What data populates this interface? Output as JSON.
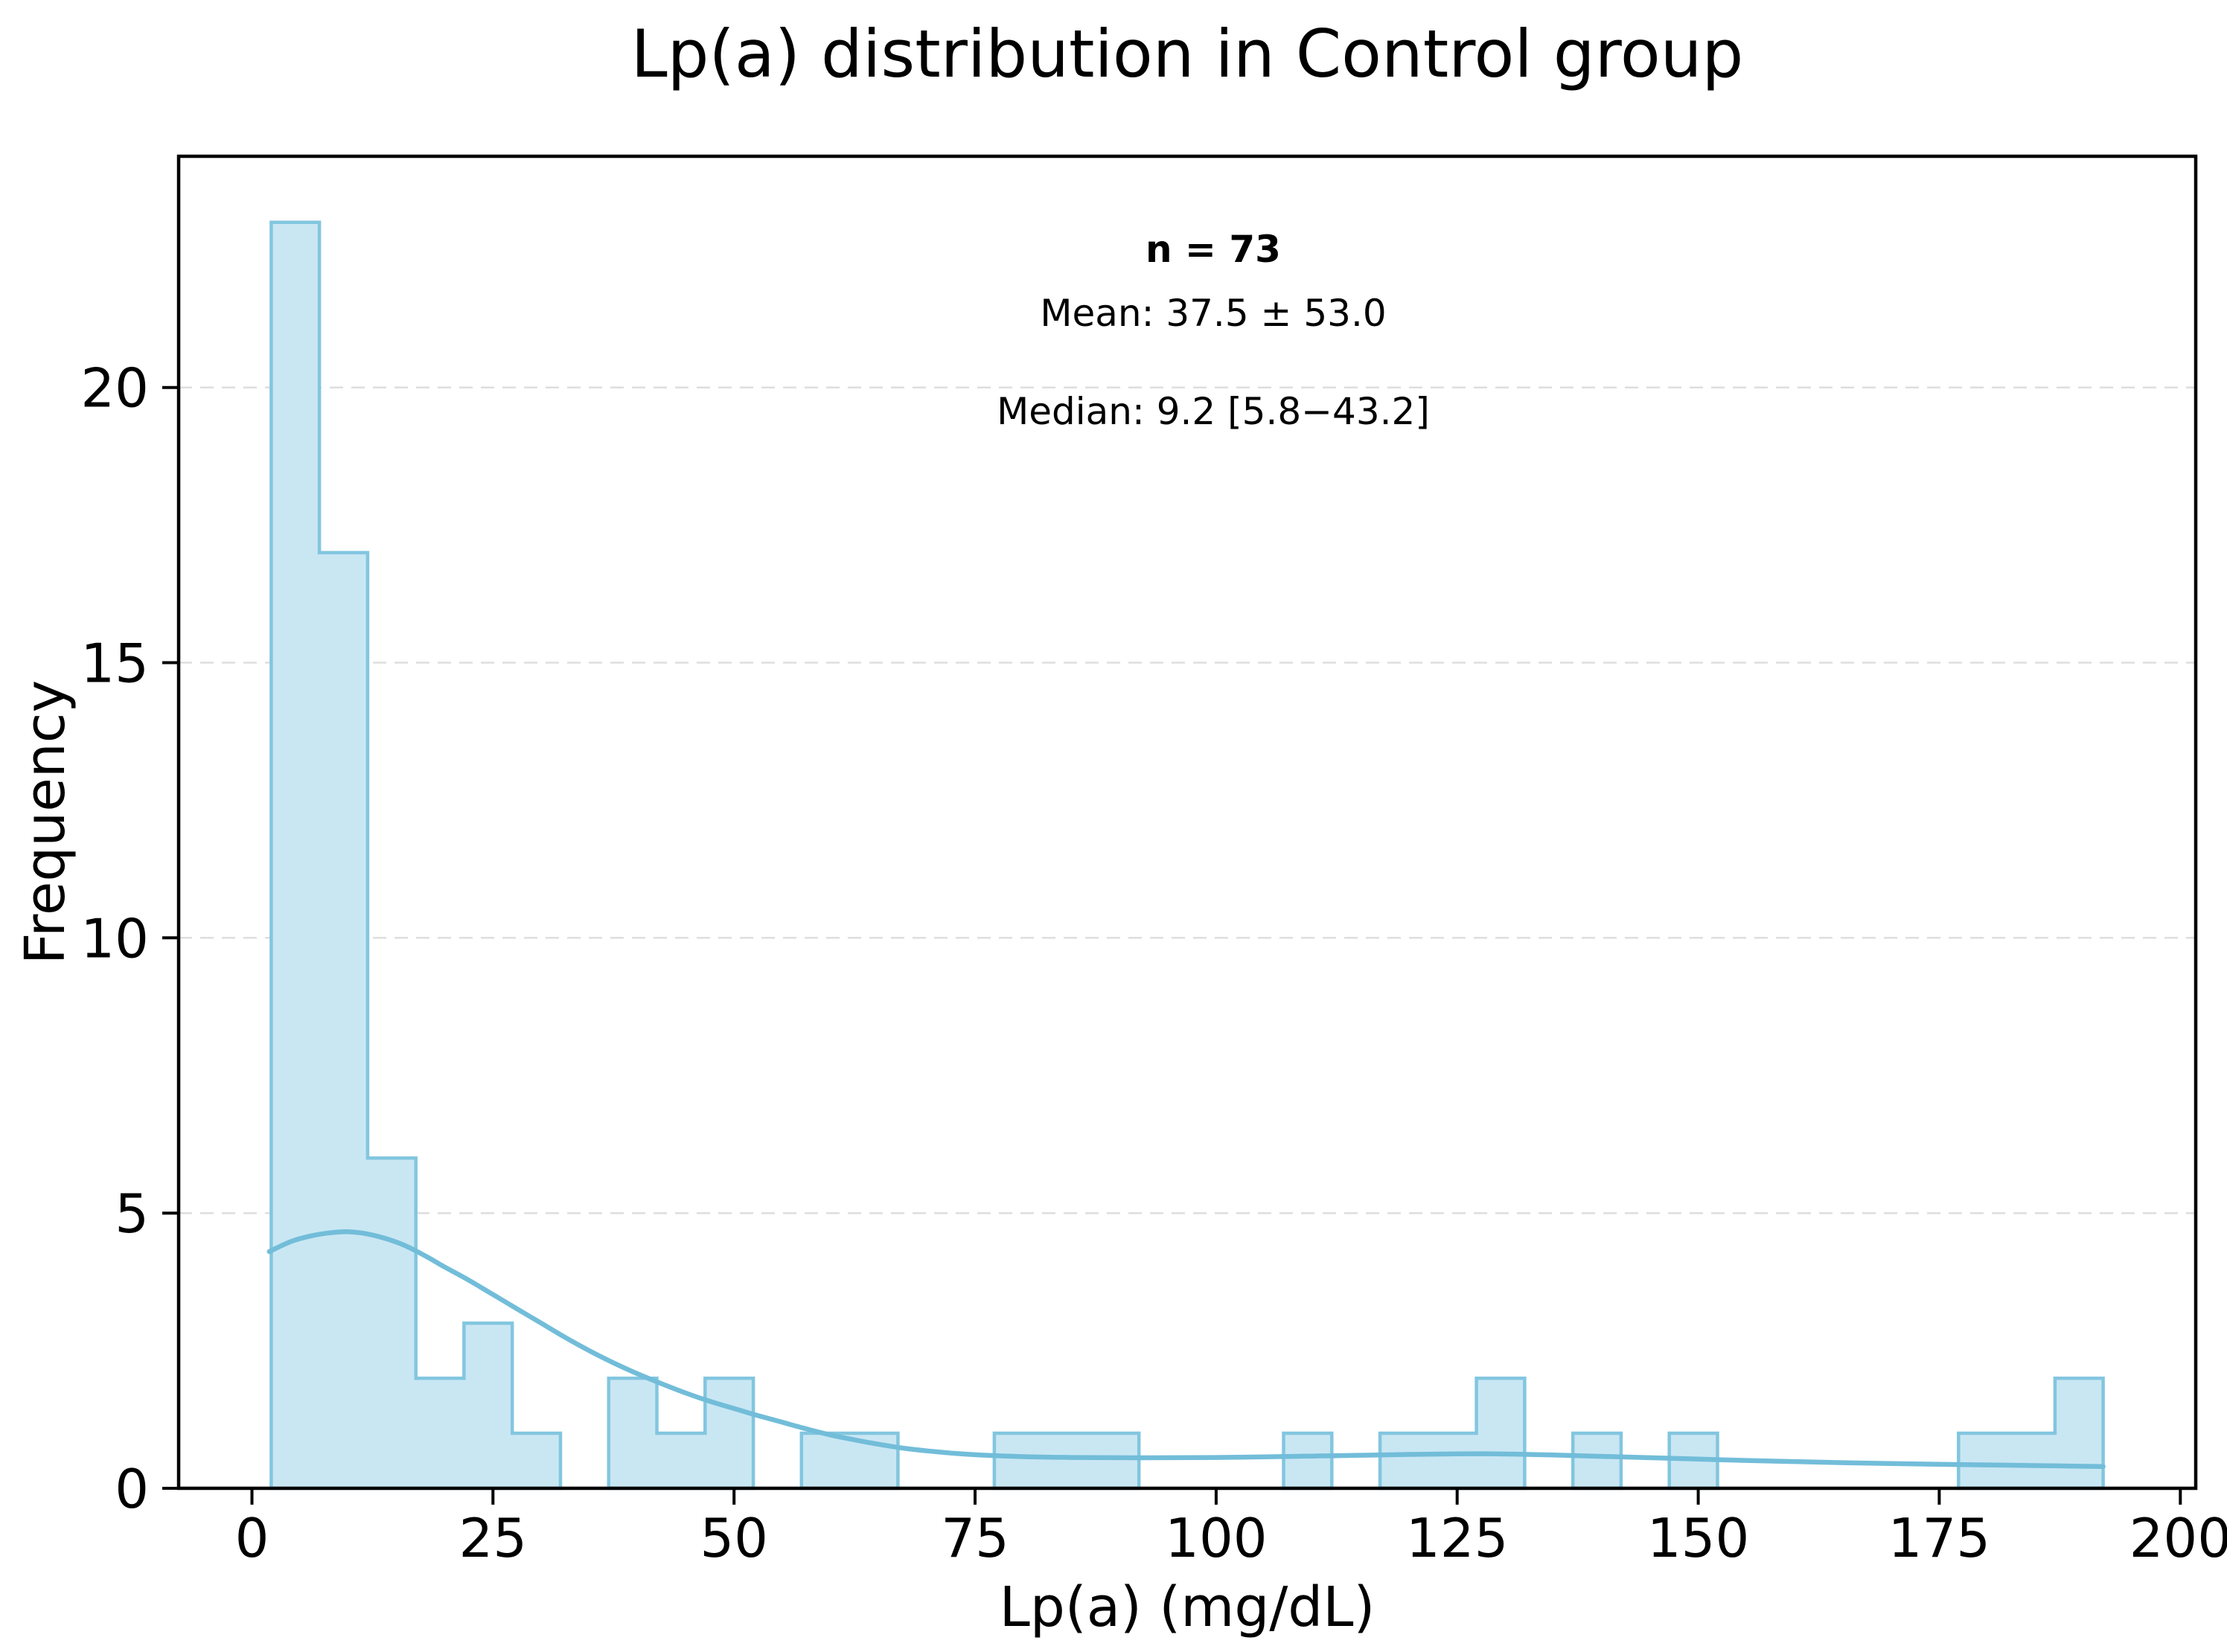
{
  "figure": {
    "title": "Lp(a) distribution in Control group",
    "xlabel": "Lp(a) (mg/dL)",
    "ylabel": "Frequency",
    "annotation": {
      "n": "n = 73",
      "mean": "Mean: 37.5 ± 53.0",
      "median": "Median: 9.2 [5.8−43.2]"
    }
  },
  "chart_data": {
    "type": "bar",
    "subtype": "histogram_with_kde",
    "title": "Lp(a) distribution in Control group",
    "xlabel": "Lp(a) (mg/dL)",
    "ylabel": "Frequency",
    "n_total": 73,
    "bin_width": 5,
    "bin_starts": [
      2,
      7,
      12,
      17,
      22,
      27,
      32,
      37,
      42,
      47,
      52,
      57,
      62,
      67,
      72,
      77,
      82,
      87,
      92,
      97,
      102,
      107,
      112,
      117,
      122,
      127,
      132,
      137,
      142,
      147,
      152,
      157,
      162,
      167,
      172,
      177,
      182,
      187
    ],
    "counts": [
      23,
      17,
      6,
      2,
      3,
      1,
      0,
      2,
      1,
      2,
      0,
      1,
      1,
      0,
      0,
      1,
      1,
      1,
      0,
      0,
      0,
      1,
      0,
      1,
      1,
      2,
      0,
      1,
      0,
      1,
      0,
      0,
      0,
      0,
      0,
      1,
      1,
      2
    ],
    "x_ticks": [
      0,
      25,
      50,
      75,
      100,
      125,
      150,
      175,
      200
    ],
    "y_ticks": [
      0,
      5,
      10,
      15,
      20
    ],
    "xlim": [
      -7.6,
      201.6
    ],
    "ylim": [
      0,
      24.2
    ],
    "grid": {
      "axis": "y",
      "style": "dashed",
      "on": true
    },
    "legend": null,
    "annotations": [
      "n = 73",
      "Mean: 37.5 ± 53.0",
      "Median: 9.2 [5.8−43.2]"
    ],
    "kde": {
      "x": [
        1.8,
        4,
        6,
        8,
        10,
        12,
        14,
        16,
        18,
        20,
        22.5,
        25,
        27.5,
        30,
        32.5,
        35,
        37.5,
        40,
        42.5,
        45,
        47.5,
        50,
        52.5,
        55,
        57.5,
        60,
        62.5,
        65,
        67.5,
        70,
        72.5,
        75,
        80,
        85,
        90,
        95,
        100,
        105,
        110,
        115,
        120,
        125,
        128,
        131,
        135,
        140,
        145,
        150,
        155,
        160,
        165,
        170,
        175,
        180,
        185,
        188,
        192
      ],
      "y": [
        4.3,
        4.48,
        4.58,
        4.64,
        4.66,
        4.62,
        4.53,
        4.4,
        4.22,
        4.02,
        3.78,
        3.52,
        3.26,
        3.0,
        2.74,
        2.5,
        2.28,
        2.08,
        1.9,
        1.73,
        1.58,
        1.45,
        1.32,
        1.2,
        1.08,
        0.97,
        0.88,
        0.8,
        0.73,
        0.68,
        0.64,
        0.61,
        0.575,
        0.56,
        0.555,
        0.555,
        0.56,
        0.57,
        0.585,
        0.6,
        0.615,
        0.625,
        0.627,
        0.62,
        0.605,
        0.58,
        0.555,
        0.53,
        0.505,
        0.485,
        0.465,
        0.45,
        0.437,
        0.425,
        0.412,
        0.405,
        0.395
      ]
    },
    "colors": {
      "bar_fill": "#c9e7f3",
      "bar_edge": "#82c6df",
      "kde_line": "#72bdd9",
      "grid": "#dedede",
      "axis": "#000000",
      "text": "#000000",
      "background": "#ffffff"
    }
  }
}
